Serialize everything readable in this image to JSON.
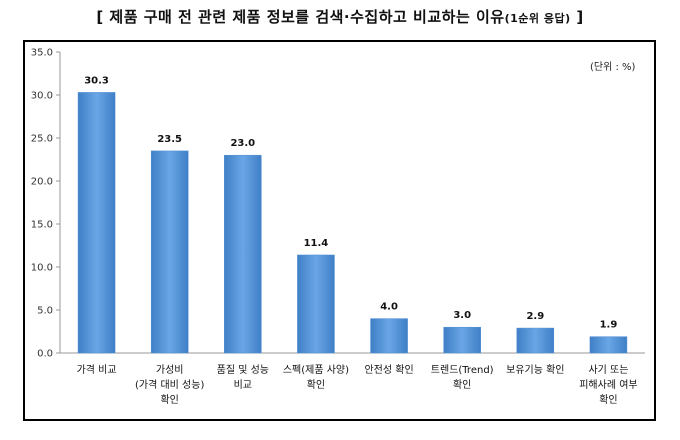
{
  "chart_data": {
    "type": "bar",
    "title_main": "[ 제품 구매 전 관련 제품 정보를 검색·수집하고 비교하는 이유",
    "title_sub": "(1순위 응답)",
    "title_end": " ]",
    "unit": "(단위 : %)",
    "ylim": [
      0,
      35
    ],
    "yticks": [
      "0.0",
      "5.0",
      "10.0",
      "15.0",
      "20.0",
      "25.0",
      "30.0",
      "35.0"
    ],
    "categories": [
      [
        "가격 비교"
      ],
      [
        "가성비",
        "(가격 대비 성능)",
        "확인"
      ],
      [
        "품질 및 성능",
        "비교"
      ],
      [
        "스펙(제품 사양)",
        "확인"
      ],
      [
        "안전성 확인"
      ],
      [
        "트렌드(Trend)",
        "확인"
      ],
      [
        "보유기능 확인"
      ],
      [
        "사기 또는",
        "피해사례 여부",
        "확인"
      ]
    ],
    "values": [
      30.3,
      23.5,
      23.0,
      11.4,
      4.0,
      3.0,
      2.9,
      1.9
    ],
    "value_labels": [
      "30.3",
      "23.5",
      "23.0",
      "11.4",
      "4.0",
      "3.0",
      "2.9",
      "1.9"
    ],
    "bar_color": "#4f8fd4",
    "grid": false
  }
}
